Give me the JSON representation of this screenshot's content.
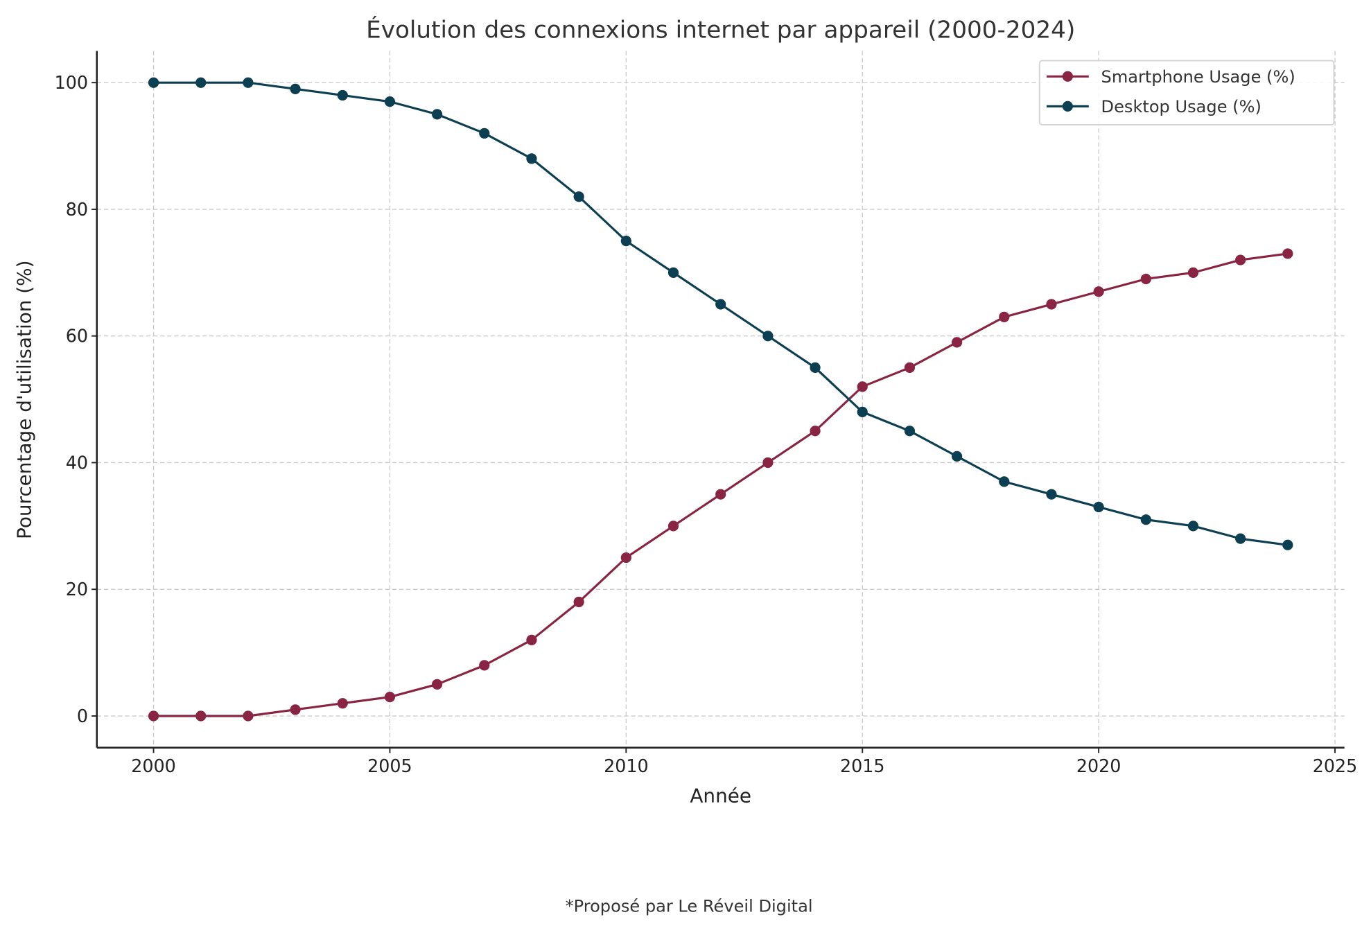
{
  "chart_data": {
    "type": "line",
    "title": "Évolution des connexions internet par appareil (2000-2024)",
    "xlabel": "Année",
    "ylabel": "Pourcentage d'utilisation (%)",
    "xlim": [
      1998.8,
      2025.2
    ],
    "ylim": [
      -5,
      105
    ],
    "x_ticks": [
      "2000",
      "2005",
      "2010",
      "2015",
      "2020",
      "2025"
    ],
    "y_ticks": [
      "0",
      "20",
      "40",
      "60",
      "80",
      "100"
    ],
    "grid": true,
    "legend_position": "top-right",
    "x": [
      2000,
      2001,
      2002,
      2003,
      2004,
      2005,
      2006,
      2007,
      2008,
      2009,
      2010,
      2011,
      2012,
      2013,
      2014,
      2015,
      2016,
      2017,
      2018,
      2019,
      2020,
      2021,
      2022,
      2023,
      2024
    ],
    "series": [
      {
        "name": "Smartphone Usage (%)",
        "color": "#8a2443",
        "values": [
          0,
          0,
          0,
          1,
          2,
          3,
          5,
          8,
          12,
          18,
          25,
          30,
          35,
          40,
          45,
          52,
          55,
          59,
          63,
          65,
          67,
          69,
          70,
          72,
          73
        ]
      },
      {
        "name": "Desktop Usage (%)",
        "color": "#0c3f51",
        "values": [
          100,
          100,
          100,
          99,
          98,
          97,
          95,
          92,
          88,
          82,
          75,
          70,
          65,
          60,
          55,
          48,
          45,
          41,
          37,
          35,
          33,
          31,
          30,
          28,
          27
        ]
      }
    ]
  },
  "footer": "*Proposé par Le Réveil Digital"
}
